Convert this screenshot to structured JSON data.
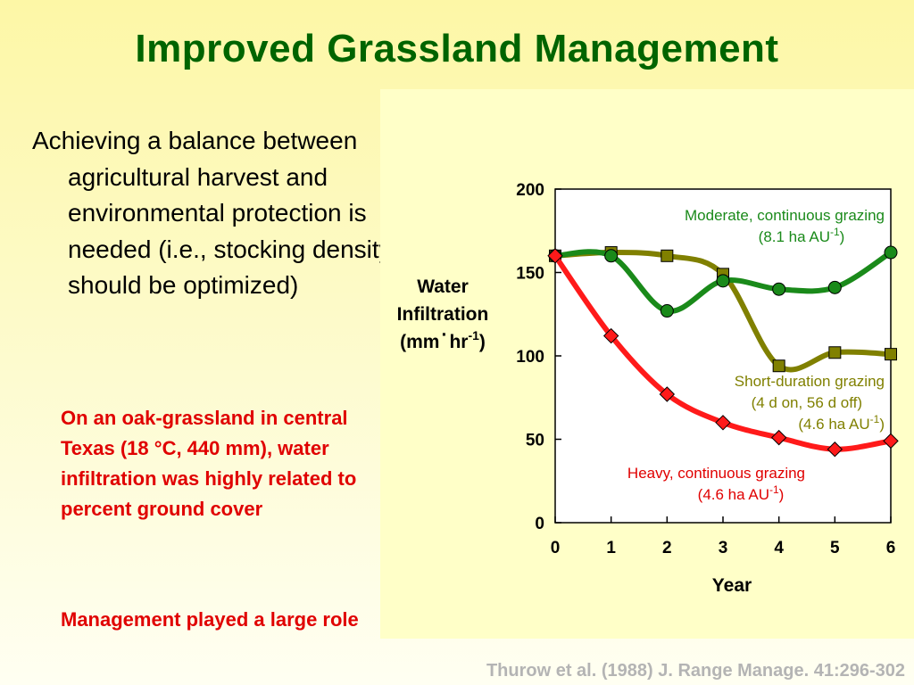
{
  "slide": {
    "title": "Improved Grassland Management",
    "bullet": "Achieving a balance between agricultural harvest and environmental protection is needed (i.e., stocking density should be optimized)",
    "note1": "On an oak-grassland in central Texas (18 °C, 440 mm), water infiltration was highly related to percent ground cover",
    "note2": "Management played a large role",
    "citation": "Thurow et al. (1988) J. Range Manage. 41:296-302"
  },
  "colors": {
    "title": "#006400",
    "note": "#e00000",
    "panel": "#ffffc8",
    "citation": "#b4b4b4"
  },
  "chart_data": {
    "type": "line",
    "title": "",
    "ylabel_lines": [
      "Water",
      "Infiltration",
      "(mm",
      "·",
      "hr",
      "-1",
      ")"
    ],
    "xlabel": "Year",
    "x": [
      0,
      1,
      2,
      3,
      4,
      5,
      6
    ],
    "xticks": [
      "0",
      "1",
      "2",
      "3",
      "4",
      "5",
      "6"
    ],
    "yticks": [
      "0",
      "50",
      "100",
      "150",
      "200"
    ],
    "xlim": [
      0,
      6
    ],
    "ylim": [
      0,
      200
    ],
    "grid": false,
    "smooth": true,
    "series": [
      {
        "name": "Moderate, continuous grazing",
        "label_lines": [
          [
            "Moderate, continuous grazing"
          ],
          [
            "(8.1 ha AU",
            "-1",
            ")"
          ]
        ],
        "color": "#1a8a1a",
        "marker": "circle",
        "values": [
          160,
          160,
          127,
          145,
          140,
          141,
          162
        ]
      },
      {
        "name": "Short-duration grazing",
        "label_lines": [
          [
            "Short-duration grazing"
          ],
          [
            "(4 d on, 56 d off)"
          ],
          [
            "(4.6 ha AU",
            "-1",
            ")"
          ]
        ],
        "color": "#808000",
        "marker": "square",
        "values": [
          160,
          162,
          160,
          149,
          94,
          102,
          101
        ]
      },
      {
        "name": "Heavy, continuous grazing",
        "label_lines": [
          [
            "Heavy, continuous grazing"
          ],
          [
            "(4.6 ha AU",
            "-1",
            ")"
          ]
        ],
        "color": "#ff1a1a",
        "marker": "diamond",
        "values": [
          160,
          112,
          77,
          60,
          51,
          44,
          49
        ]
      }
    ]
  }
}
